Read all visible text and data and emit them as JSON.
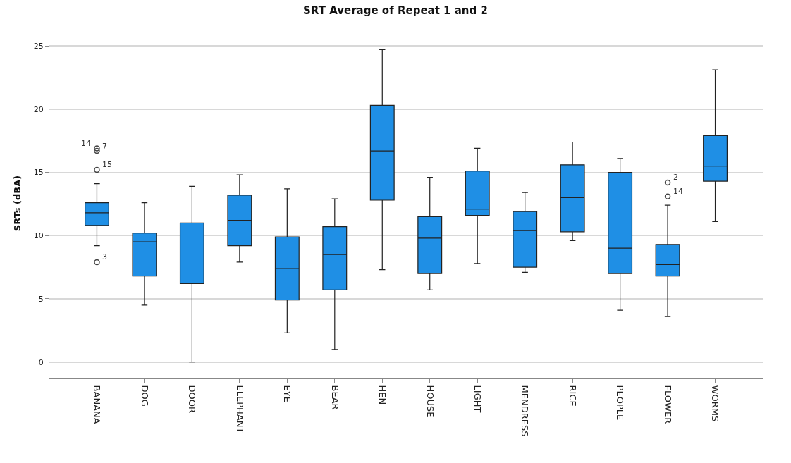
{
  "chart_data": {
    "type": "box",
    "title": "SRT Average of Repeat 1 and 2",
    "ylabel": "SRTs (dBA)",
    "categories": [
      "BANANA",
      "DOG",
      "DOOR",
      "ELEPHANT",
      "EYE",
      "BEAR",
      "HEN",
      "HOUSE",
      "LIGHT",
      "MENDRESS",
      "RICE",
      "PEOPLE",
      "FLOWER",
      "WORMS"
    ],
    "boxes": [
      {
        "low": 9.2,
        "q1": 10.8,
        "median": 11.8,
        "q3": 12.6,
        "high": 14.1
      },
      {
        "low": 4.5,
        "q1": 6.8,
        "median": 9.5,
        "q3": 10.2,
        "high": 12.6
      },
      {
        "low": 0.0,
        "q1": 6.2,
        "median": 7.2,
        "q3": 11.0,
        "high": 13.9
      },
      {
        "low": 7.9,
        "q1": 9.2,
        "median": 11.2,
        "q3": 13.2,
        "high": 14.8
      },
      {
        "low": 2.3,
        "q1": 4.9,
        "median": 7.4,
        "q3": 9.9,
        "high": 13.7
      },
      {
        "low": 1.0,
        "q1": 5.7,
        "median": 8.5,
        "q3": 10.7,
        "high": 12.9
      },
      {
        "low": 7.3,
        "q1": 12.8,
        "median": 16.7,
        "q3": 20.3,
        "high": 24.7
      },
      {
        "low": 5.7,
        "q1": 7.0,
        "median": 9.8,
        "q3": 11.5,
        "high": 14.6
      },
      {
        "low": 7.8,
        "q1": 11.6,
        "median": 12.1,
        "q3": 15.1,
        "high": 16.9
      },
      {
        "low": 7.1,
        "q1": 7.5,
        "median": 10.4,
        "q3": 11.9,
        "high": 13.4
      },
      {
        "low": 9.6,
        "q1": 10.3,
        "median": 13.0,
        "q3": 15.6,
        "high": 17.4
      },
      {
        "low": 4.1,
        "q1": 7.0,
        "median": 9.0,
        "q3": 15.0,
        "high": 16.1
      },
      {
        "low": 3.6,
        "q1": 6.8,
        "median": 7.7,
        "q3": 9.3,
        "high": 12.4
      },
      {
        "low": 11.1,
        "q1": 14.3,
        "median": 15.5,
        "q3": 17.9,
        "high": 23.1
      }
    ],
    "color": "#1f8fe5",
    "series": [
      {
        "type": "scatter",
        "color": "#444444",
        "marker": "circle",
        "x": [
          "BANANA",
          "BANANA",
          "BANANA",
          "BANANA",
          "FLOWER",
          "FLOWER"
        ],
        "values": [
          16.9,
          16.7,
          15.2,
          7.9,
          14.2,
          13.1
        ]
      }
    ],
    "annotations": [
      {
        "text": "14",
        "x": "BANANA",
        "y": 16.9
      },
      {
        "text": "7",
        "x": "BANANA",
        "y": 16.7
      },
      {
        "text": "15",
        "x": "BANANA",
        "y": 15.2
      },
      {
        "text": "3",
        "x": "BANANA",
        "y": 7.9
      },
      {
        "text": "2",
        "x": "FLOWER",
        "y": 14.2
      },
      {
        "text": "14",
        "x": "FLOWER",
        "y": 13.1
      }
    ],
    "ylim": [
      -1.3,
      26.4
    ],
    "yticks": [
      0,
      5,
      10,
      15,
      20,
      25
    ],
    "grid": "y"
  }
}
